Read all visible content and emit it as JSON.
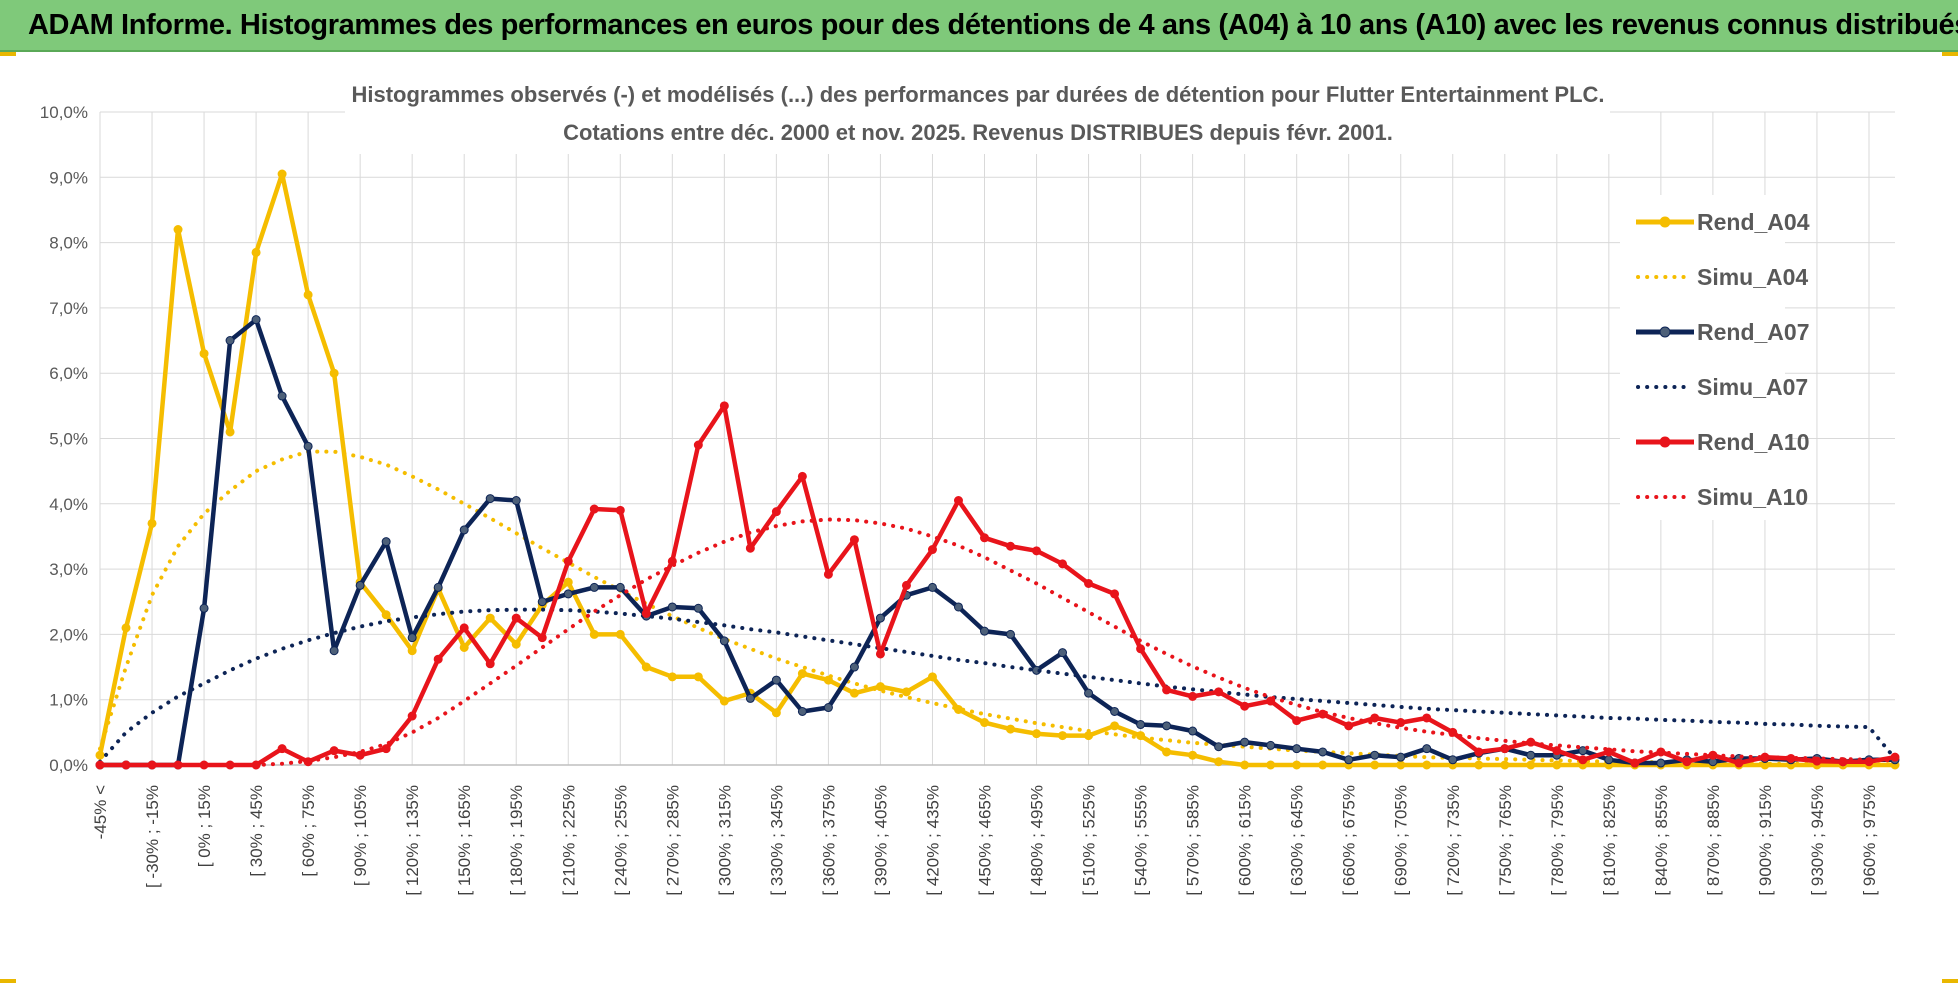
{
  "header": {
    "title": "ADAM Informe. Histogrammes des performances en euros pour des détentions de 4 ans (A04) à 10 ans (A10) avec les revenus connus distribués"
  },
  "chart_data": {
    "type": "line",
    "title": "Histogrammes observés (-) et modélisés (...) des performances par durées de détention pour Flutter Entertainment PLC.",
    "subtitle": "Cotations entre déc. 2000 et nov. 2025. Revenus DISTRIBUES depuis févr. 2001.",
    "xlabel": "",
    "ylabel": "",
    "ylim": [
      0,
      10
    ],
    "y_ticks": [
      "0,0%",
      "1,0%",
      "2,0%",
      "3,0%",
      "4,0%",
      "5,0%",
      "6,0%",
      "7,0%",
      "8,0%",
      "9,0%",
      "10,0%"
    ],
    "x_tick_labels": [
      "-45% <",
      "[ -30% ; -15%",
      "[ 0% ; 15%",
      "[ 30% ; 45%",
      "[ 60% ; 75%",
      "[ 90% ; 105%",
      "[ 120% ; 135%",
      "[ 150% ; 165%",
      "[ 180% ; 195%",
      "[ 210% ; 225%",
      "[ 240% ; 255%",
      "[ 270% ; 285%",
      "[ 300% ; 315%",
      "[ 330% ; 345%",
      "[ 360% ; 375%",
      "[ 390% ; 405%",
      "[ 420% ; 435%",
      "[ 450% ; 465%",
      "[ 480% ; 495%",
      "[ 510% ; 525%",
      "[ 540% ; 555%",
      "[ 570% ; 585%",
      "[ 600% ; 615%",
      "[ 630% ; 645%",
      "[ 660% ; 675%",
      "[ 690% ; 705%",
      "[ 720% ; 735%",
      "[ 750% ; 765%",
      "[ 780% ; 795%",
      "[ 810% ; 825%",
      "[ 840% ; 855%",
      "[ 870% ; 885%",
      "[ 900% ; 915%",
      "[ 930% ; 945%",
      "[ 960% ; 975%"
    ],
    "n_bins": 70,
    "grid": true,
    "legend_position": "right",
    "series": [
      {
        "name": "Rend_A04",
        "style": "solid",
        "markers": true,
        "color": "#f5bd00",
        "values": [
          0.15,
          2.1,
          3.7,
          8.2,
          6.3,
          5.1,
          7.85,
          9.05,
          7.2,
          6.0,
          2.8,
          2.3,
          1.75,
          2.7,
          1.8,
          2.25,
          1.85,
          2.45,
          2.8,
          2.0,
          2.0,
          1.5,
          1.35,
          1.35,
          0.98,
          1.1,
          0.8,
          1.4,
          1.3,
          1.1,
          1.2,
          1.12,
          1.35,
          0.85,
          0.65,
          0.55,
          0.48,
          0.45,
          0.45,
          0.6,
          0.45,
          0.2,
          0.15,
          0.05,
          0.0,
          0.0,
          0.0,
          0.0,
          0.0,
          0.0,
          0.0,
          0.0,
          0.0,
          0.0,
          0.0,
          0.0,
          0.0,
          0.0,
          0.0,
          0.0,
          0.0,
          0.0,
          0.0,
          0.0,
          0.0,
          0.0,
          0.0,
          0.0,
          0.0,
          0.0
        ]
      },
      {
        "name": "Simu_A04",
        "style": "dotted",
        "markers": false,
        "color": "#f5bd00",
        "values": [
          0.25,
          1.5,
          2.6,
          3.35,
          3.85,
          4.2,
          4.5,
          4.68,
          4.8,
          4.8,
          4.72,
          4.6,
          4.42,
          4.22,
          4.0,
          3.78,
          3.55,
          3.32,
          3.1,
          2.88,
          2.67,
          2.47,
          2.28,
          2.1,
          1.93,
          1.78,
          1.63,
          1.5,
          1.37,
          1.25,
          1.14,
          1.04,
          0.95,
          0.86,
          0.78,
          0.71,
          0.64,
          0.58,
          0.52,
          0.47,
          0.42,
          0.38,
          0.34,
          0.31,
          0.28,
          0.25,
          0.22,
          0.2,
          0.18,
          0.16,
          0.14,
          0.12,
          0.11,
          0.1,
          0.09,
          0.08,
          0.07,
          0.06,
          0.05,
          0.05,
          0.04,
          0.04,
          0.03,
          0.03,
          0.02,
          0.02,
          0.02,
          0.01,
          0.01,
          0.01
        ]
      },
      {
        "name": "Rend_A07",
        "style": "solid",
        "markers": true,
        "color": "#0d2456",
        "values": [
          0.0,
          0.0,
          0.0,
          0.0,
          2.4,
          6.5,
          6.82,
          5.65,
          4.88,
          1.75,
          2.75,
          3.42,
          1.95,
          2.72,
          3.6,
          4.08,
          4.05,
          2.5,
          2.62,
          2.72,
          2.72,
          2.28,
          2.42,
          2.4,
          1.9,
          1.02,
          1.3,
          0.82,
          0.88,
          1.5,
          2.25,
          2.6,
          2.72,
          2.42,
          2.05,
          2.0,
          1.45,
          1.72,
          1.1,
          0.82,
          0.62,
          0.6,
          0.52,
          0.28,
          0.35,
          0.3,
          0.25,
          0.2,
          0.08,
          0.15,
          0.12,
          0.25,
          0.08,
          0.18,
          0.25,
          0.15,
          0.15,
          0.22,
          0.08,
          0.03,
          0.03,
          0.08,
          0.05,
          0.1,
          0.1,
          0.08,
          0.1,
          0.05,
          0.08,
          0.08
        ]
      },
      {
        "name": "Simu_A07",
        "style": "dotted",
        "markers": false,
        "color": "#0d2456",
        "values": [
          0.05,
          0.5,
          0.8,
          1.05,
          1.25,
          1.45,
          1.63,
          1.78,
          1.91,
          2.02,
          2.12,
          2.2,
          2.26,
          2.31,
          2.35,
          2.37,
          2.38,
          2.38,
          2.37,
          2.35,
          2.32,
          2.28,
          2.24,
          2.19,
          2.14,
          2.08,
          2.03,
          1.97,
          1.91,
          1.85,
          1.79,
          1.73,
          1.67,
          1.61,
          1.56,
          1.5,
          1.45,
          1.4,
          1.35,
          1.3,
          1.25,
          1.2,
          1.16,
          1.12,
          1.08,
          1.04,
          1.01,
          0.98,
          0.95,
          0.92,
          0.89,
          0.86,
          0.84,
          0.82,
          0.8,
          0.78,
          0.76,
          0.74,
          0.72,
          0.71,
          0.69,
          0.68,
          0.66,
          0.65,
          0.63,
          0.62,
          0.6,
          0.59,
          0.58,
          0.1
        ]
      },
      {
        "name": "Rend_A10",
        "style": "solid",
        "markers": true,
        "color": "#e8141b",
        "values": [
          0.0,
          0.0,
          0.0,
          0.0,
          0.0,
          0.0,
          0.0,
          0.25,
          0.05,
          0.22,
          0.15,
          0.25,
          0.75,
          1.62,
          2.1,
          1.55,
          2.25,
          1.95,
          3.12,
          3.92,
          3.9,
          2.32,
          3.12,
          4.9,
          5.5,
          3.32,
          3.88,
          4.42,
          2.92,
          3.45,
          1.7,
          2.75,
          3.3,
          4.05,
          3.48,
          3.35,
          3.28,
          3.08,
          2.78,
          2.62,
          1.78,
          1.15,
          1.05,
          1.12,
          0.9,
          0.98,
          0.68,
          0.78,
          0.6,
          0.72,
          0.65,
          0.72,
          0.5,
          0.2,
          0.25,
          0.35,
          0.22,
          0.08,
          0.2,
          0.03,
          0.2,
          0.05,
          0.15,
          0.03,
          0.12,
          0.1,
          0.06,
          0.05,
          0.05,
          0.12
        ]
      },
      {
        "name": "Simu_A10",
        "style": "dotted",
        "markers": false,
        "color": "#e8141b",
        "values": [
          0.0,
          0.0,
          0.0,
          0.0,
          0.0,
          0.0,
          0.0,
          0.02,
          0.06,
          0.12,
          0.2,
          0.32,
          0.5,
          0.72,
          0.98,
          1.25,
          1.52,
          1.8,
          2.08,
          2.35,
          2.6,
          2.84,
          3.05,
          3.25,
          3.42,
          3.56,
          3.66,
          3.73,
          3.76,
          3.75,
          3.7,
          3.62,
          3.5,
          3.36,
          3.18,
          2.98,
          2.78,
          2.56,
          2.34,
          2.12,
          1.9,
          1.7,
          1.51,
          1.34,
          1.18,
          1.04,
          0.92,
          0.81,
          0.72,
          0.64,
          0.57,
          0.51,
          0.46,
          0.41,
          0.37,
          0.33,
          0.3,
          0.27,
          0.24,
          0.21,
          0.19,
          0.17,
          0.15,
          0.13,
          0.12,
          0.11,
          0.1,
          0.09,
          0.08,
          0.07
        ]
      }
    ]
  }
}
